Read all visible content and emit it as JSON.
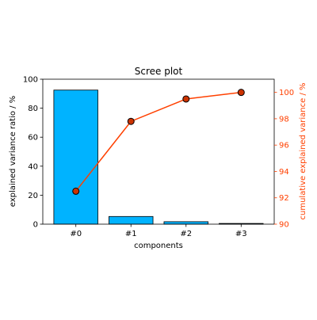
{
  "chart_data": {
    "type": "bar+line",
    "title": "Scree plot",
    "xlabel": "components",
    "categories": [
      "#0",
      "#1",
      "#2",
      "#3"
    ],
    "y_left": {
      "label": "explained variance ratio / %",
      "lim": [
        0,
        100
      ],
      "ticks": [
        0,
        20,
        40,
        60,
        80,
        100
      ]
    },
    "y_right": {
      "label": "cumulative explained variance / %",
      "lim": [
        90,
        101
      ],
      "ticks": [
        90,
        92,
        94,
        96,
        98,
        100
      ]
    },
    "series": [
      {
        "kind": "bar",
        "axis": "left",
        "values": [
          92.5,
          5.3,
          1.7,
          0.5
        ]
      },
      {
        "kind": "line",
        "axis": "right",
        "values": [
          92.5,
          97.8,
          99.5,
          100.0
        ]
      }
    ],
    "grid": false,
    "colors": {
      "bar_fill": "#00b3ff",
      "bar_edge": "#000000",
      "line": "#ff4000",
      "marker_face": "#cc3300",
      "marker_edge": "#000000",
      "right_axis": "#ff4000",
      "axes": "#000000",
      "text": "#000000"
    }
  }
}
